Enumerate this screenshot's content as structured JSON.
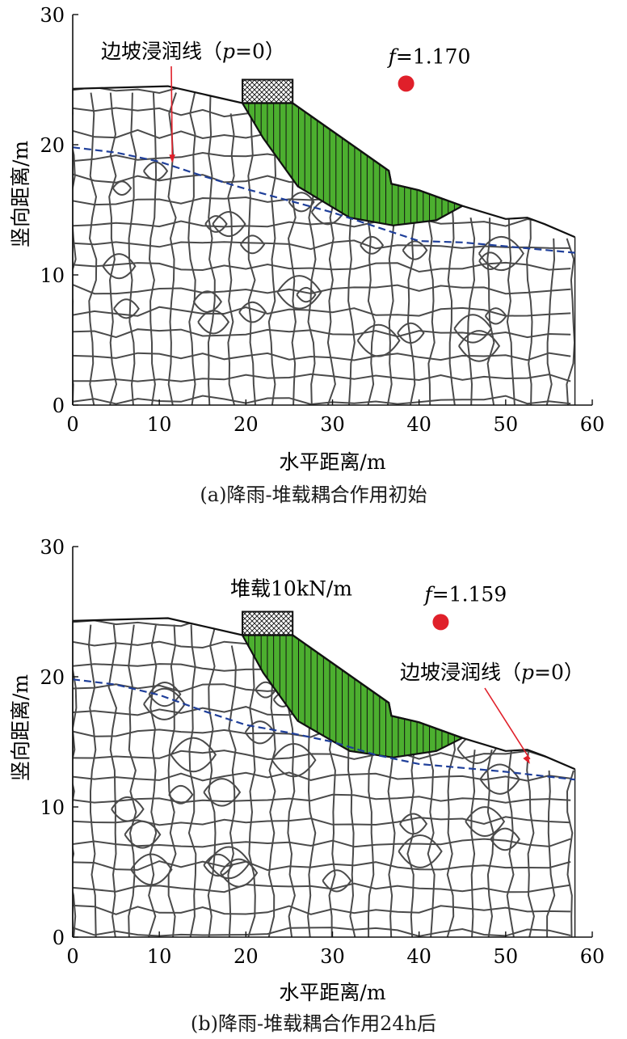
{
  "chart_data": [
    {
      "type": "diagram",
      "panel": "a",
      "caption": "(a)降雨-堆载耦合作用初始",
      "xlabel": "水平距离/m",
      "ylabel": "竖向距离/m",
      "xlim": [
        0,
        60
      ],
      "ylim": [
        0,
        30
      ],
      "xticks": [
        "0",
        "10",
        "20",
        "30",
        "40",
        "50",
        "60"
      ],
      "yticks": [
        "0",
        "10",
        "20",
        "30"
      ],
      "factor_of_safety": {
        "label": "f=1.170",
        "prefix": "f",
        "value": "=1.170",
        "x": 38.5,
        "y": 24.7
      },
      "annotations": [
        {
          "text": "边坡浸润线（p=0）",
          "pre": "边坡浸润线（",
          "italic": "p",
          "post": "=0）",
          "target": [
            11.5,
            18.6
          ]
        }
      ],
      "load_label": "",
      "load_box": {
        "x0": 19.6,
        "x1": 25.4,
        "y0": 23.2,
        "y1": 25.0
      },
      "slope_surface": [
        [
          0,
          24.3
        ],
        [
          11,
          24.5
        ],
        [
          19.6,
          23.2
        ],
        [
          25.4,
          23.2
        ],
        [
          36.5,
          18.0
        ],
        [
          36.8,
          17.0
        ],
        [
          40,
          16.5
        ],
        [
          45,
          15.3
        ],
        [
          50,
          14.3
        ],
        [
          52.5,
          14.4
        ],
        [
          54.5,
          13.9
        ],
        [
          58,
          12.9
        ]
      ],
      "slip_mass": [
        [
          19.6,
          23.2
        ],
        [
          25.4,
          23.2
        ],
        [
          36.5,
          18.0
        ],
        [
          36.8,
          17.0
        ],
        [
          40,
          16.5
        ],
        [
          45,
          15.3
        ],
        [
          42,
          14.2
        ],
        [
          37,
          13.8
        ],
        [
          32,
          14.4
        ],
        [
          26,
          16.8
        ],
        [
          22,
          20.5
        ],
        [
          19.6,
          23.2
        ]
      ],
      "phreatic_line": [
        [
          0,
          19.8
        ],
        [
          5,
          19.4
        ],
        [
          10,
          18.7
        ],
        [
          15,
          17.6
        ],
        [
          20,
          16.6
        ],
        [
          25,
          15.7
        ],
        [
          30,
          14.8
        ],
        [
          35,
          13.7
        ],
        [
          40,
          12.6
        ],
        [
          45,
          12.5
        ],
        [
          50,
          12.2
        ],
        [
          58,
          11.7
        ]
      ]
    },
    {
      "type": "diagram",
      "panel": "b",
      "caption": "(b)降雨-堆载耦合作用24h后",
      "xlabel": "水平距离/m",
      "ylabel": "竖向距离/m",
      "xlim": [
        0,
        60
      ],
      "ylim": [
        0,
        30
      ],
      "xticks": [
        "0",
        "10",
        "20",
        "30",
        "40",
        "50",
        "60"
      ],
      "yticks": [
        "0",
        "10",
        "20",
        "30"
      ],
      "factor_of_safety": {
        "label": "f=1.159",
        "prefix": "f",
        "value": "=1.159",
        "x": 42.5,
        "y": 24.2
      },
      "annotations": [
        {
          "text": "边坡浸润线（p=0）",
          "pre": "边坡浸润线（",
          "italic": "p",
          "post": "=0）",
          "target": [
            52.8,
            13.3
          ]
        }
      ],
      "load_label": "堆载10kN/m",
      "load_box": {
        "x0": 19.6,
        "x1": 25.4,
        "y0": 23.2,
        "y1": 25.0
      },
      "slope_surface": [
        [
          0,
          24.3
        ],
        [
          11,
          24.5
        ],
        [
          19.6,
          23.2
        ],
        [
          25.4,
          23.2
        ],
        [
          36.5,
          18.0
        ],
        [
          36.8,
          17.0
        ],
        [
          40,
          16.5
        ],
        [
          45,
          15.3
        ],
        [
          50,
          14.3
        ],
        [
          52.5,
          14.4
        ],
        [
          54.5,
          13.9
        ],
        [
          58,
          12.9
        ]
      ],
      "slip_mass": [
        [
          19.6,
          23.2
        ],
        [
          25.4,
          23.2
        ],
        [
          36.5,
          18.0
        ],
        [
          36.8,
          17.0
        ],
        [
          40,
          16.5
        ],
        [
          45,
          15.3
        ],
        [
          42,
          14.3
        ],
        [
          37,
          13.8
        ],
        [
          32,
          14.3
        ],
        [
          26,
          16.6
        ],
        [
          22,
          20.3
        ],
        [
          19.6,
          23.2
        ]
      ],
      "phreatic_line": [
        [
          0,
          19.8
        ],
        [
          5,
          19.4
        ],
        [
          10,
          18.6
        ],
        [
          15,
          17.4
        ],
        [
          20,
          16.3
        ],
        [
          25,
          15.7
        ],
        [
          30,
          15.0
        ],
        [
          35,
          14.0
        ],
        [
          40,
          13.3
        ],
        [
          45,
          13.0
        ],
        [
          50,
          12.7
        ],
        [
          58,
          12.1
        ]
      ]
    }
  ]
}
